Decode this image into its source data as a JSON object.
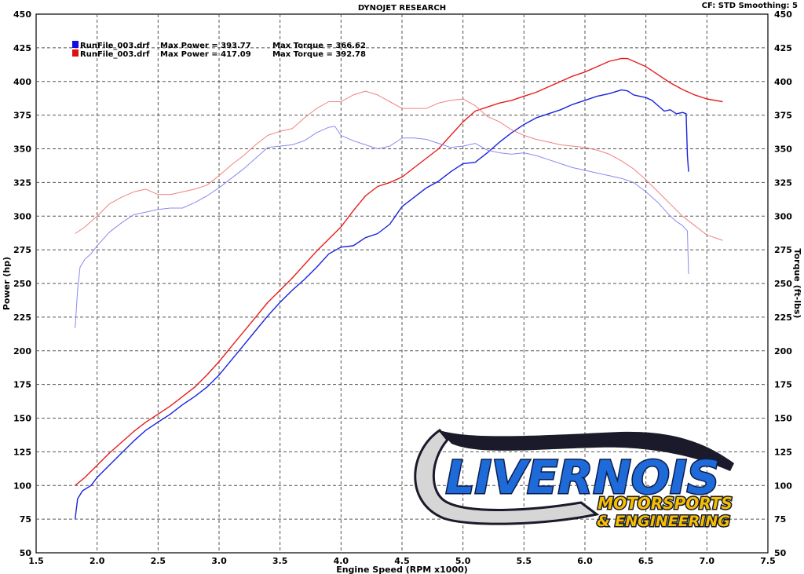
{
  "chart_data": {
    "type": "line",
    "title": "DYNOJET RESEARCH",
    "header_right": "CF: STD  Smoothing: 5",
    "xlabel": "Engine Speed (RPM x1000)",
    "ylabel_left": "Power (hp)",
    "ylabel_right": "Torque (ft-lbs)",
    "xlim": [
      1.5,
      7.5
    ],
    "ylim": [
      50,
      450
    ],
    "x_ticks": [
      "1.5",
      "2.0",
      "2.5",
      "3.0",
      "3.5",
      "4.0",
      "4.5",
      "5.0",
      "5.5",
      "6.0",
      "6.5",
      "7.0",
      "7.5"
    ],
    "y_ticks": [
      "450",
      "425",
      "400",
      "375",
      "350",
      "325",
      "300",
      "275",
      "250",
      "225",
      "200",
      "175",
      "150",
      "125",
      "100",
      "75",
      "50"
    ],
    "grid": true,
    "grid_style": "dashed",
    "legend": {
      "placement": "top-left",
      "entries": [
        {
          "file": "RunFile_003.drf",
          "power": "Max Power = 393.77",
          "torque": "Max Torque = 366.62",
          "color": "#1010e0"
        },
        {
          "file": "RunFile_003.drf",
          "power": "Max Power = 417.09",
          "torque": "Max Torque = 392.78",
          "color": "#e01010"
        }
      ]
    },
    "series": [
      {
        "run": 1,
        "measure": "power",
        "color": "#1a22dd",
        "width": 1.4,
        "x": [
          1.82,
          1.84,
          1.88,
          1.95,
          2.0,
          2.1,
          2.2,
          2.3,
          2.4,
          2.5,
          2.6,
          2.7,
          2.8,
          2.9,
          3.0,
          3.1,
          3.2,
          3.3,
          3.4,
          3.5,
          3.6,
          3.7,
          3.8,
          3.9,
          4.0,
          4.1,
          4.2,
          4.3,
          4.4,
          4.5,
          4.6,
          4.7,
          4.8,
          4.9,
          5.0,
          5.1,
          5.2,
          5.3,
          5.4,
          5.5,
          5.6,
          5.7,
          5.8,
          5.9,
          6.0,
          6.1,
          6.2,
          6.3,
          6.35,
          6.4,
          6.5,
          6.55,
          6.6,
          6.65,
          6.7,
          6.75,
          6.8,
          6.83,
          6.84,
          6.85
        ],
        "y": [
          75,
          90,
          96,
          100,
          106,
          115,
          124,
          133,
          141,
          147,
          153,
          160,
          166,
          173,
          182,
          193,
          204,
          215,
          226,
          236,
          245,
          253,
          262,
          272,
          277,
          278,
          284,
          287,
          294,
          307,
          314,
          321,
          326,
          333,
          339,
          340,
          347,
          355,
          362,
          368,
          373,
          376,
          379,
          383,
          386,
          389,
          391,
          393.77,
          393,
          390,
          388,
          386,
          382,
          378,
          379,
          376,
          377,
          376,
          345,
          333
        ]
      },
      {
        "run": 2,
        "measure": "power",
        "color": "#e81c1c",
        "width": 1.4,
        "x": [
          1.82,
          1.9,
          2.0,
          2.1,
          2.2,
          2.3,
          2.4,
          2.5,
          2.6,
          2.7,
          2.8,
          2.9,
          3.0,
          3.1,
          3.2,
          3.3,
          3.4,
          3.5,
          3.6,
          3.7,
          3.8,
          3.9,
          4.0,
          4.1,
          4.2,
          4.3,
          4.4,
          4.5,
          4.6,
          4.7,
          4.8,
          4.9,
          5.0,
          5.1,
          5.2,
          5.3,
          5.4,
          5.5,
          5.6,
          5.7,
          5.8,
          5.9,
          6.0,
          6.1,
          6.2,
          6.3,
          6.35,
          6.4,
          6.5,
          6.6,
          6.7,
          6.8,
          6.9,
          7.0,
          7.13
        ],
        "y": [
          100,
          106,
          115,
          124,
          132,
          140,
          147,
          153,
          159,
          166,
          173,
          182,
          192,
          203,
          214,
          225,
          236,
          245,
          254,
          264,
          274,
          283,
          292,
          304,
          315,
          322,
          325,
          329,
          336,
          343,
          350,
          360,
          370,
          378,
          381,
          384,
          386,
          389,
          392,
          396,
          400,
          404,
          407,
          411,
          415,
          417.09,
          417,
          415,
          411,
          405,
          399,
          394,
          390,
          387,
          385
        ]
      },
      {
        "run": 1,
        "measure": "torque",
        "color": "#8a8af0",
        "width": 1.0,
        "x": [
          1.82,
          1.84,
          1.86,
          1.9,
          1.95,
          2.0,
          2.1,
          2.2,
          2.3,
          2.4,
          2.5,
          2.6,
          2.7,
          2.8,
          2.9,
          3.0,
          3.1,
          3.2,
          3.3,
          3.4,
          3.5,
          3.6,
          3.7,
          3.8,
          3.9,
          3.95,
          4.0,
          4.1,
          4.2,
          4.3,
          4.4,
          4.5,
          4.6,
          4.7,
          4.8,
          4.9,
          5.0,
          5.1,
          5.2,
          5.3,
          5.4,
          5.5,
          5.6,
          5.7,
          5.8,
          5.9,
          6.0,
          6.1,
          6.2,
          6.3,
          6.4,
          6.5,
          6.6,
          6.7,
          6.75,
          6.8,
          6.84,
          6.85
        ],
        "y": [
          217,
          245,
          262,
          268,
          272,
          278,
          288,
          295,
          301,
          303,
          305,
          306,
          306,
          310,
          315,
          321,
          328,
          335,
          343,
          351,
          352,
          353,
          356,
          362,
          366,
          366.62,
          360,
          356,
          353,
          350,
          352,
          358,
          358,
          357,
          354,
          351,
          352,
          354,
          349,
          347,
          346,
          347,
          345,
          342,
          339,
          336,
          334,
          332,
          330,
          328,
          325,
          318,
          310,
          300,
          296,
          293,
          289,
          257
        ]
      },
      {
        "run": 2,
        "measure": "torque",
        "color": "#f08080",
        "width": 1.0,
        "x": [
          1.82,
          1.9,
          2.0,
          2.1,
          2.2,
          2.3,
          2.4,
          2.5,
          2.6,
          2.7,
          2.8,
          2.9,
          3.0,
          3.1,
          3.2,
          3.3,
          3.4,
          3.5,
          3.6,
          3.7,
          3.8,
          3.9,
          4.0,
          4.1,
          4.2,
          4.3,
          4.4,
          4.5,
          4.6,
          4.7,
          4.8,
          4.9,
          5.0,
          5.1,
          5.2,
          5.3,
          5.4,
          5.5,
          5.6,
          5.7,
          5.8,
          5.9,
          6.0,
          6.1,
          6.2,
          6.3,
          6.4,
          6.5,
          6.6,
          6.7,
          6.8,
          6.9,
          7.0,
          7.13
        ],
        "y": [
          287,
          292,
          300,
          309,
          314,
          318,
          320,
          316,
          316,
          318,
          320,
          323,
          330,
          338,
          345,
          353,
          360,
          363,
          365,
          373,
          380,
          385,
          385,
          390,
          392.78,
          390,
          385,
          380,
          380,
          380,
          384,
          386,
          387,
          382,
          374,
          370,
          364,
          360,
          357,
          355,
          353,
          352,
          351,
          349,
          346,
          341,
          335,
          327,
          318,
          309,
          300,
          293,
          286,
          282
        ]
      }
    ]
  },
  "watermark": {
    "line1": "LIVERNOIS",
    "line2": "MOTORSPORTS",
    "line3": "& ENGINEERING",
    "colors": {
      "blue": "#1e6ad8",
      "gold": "#f6c000",
      "dark": "#1a1a2a"
    }
  }
}
